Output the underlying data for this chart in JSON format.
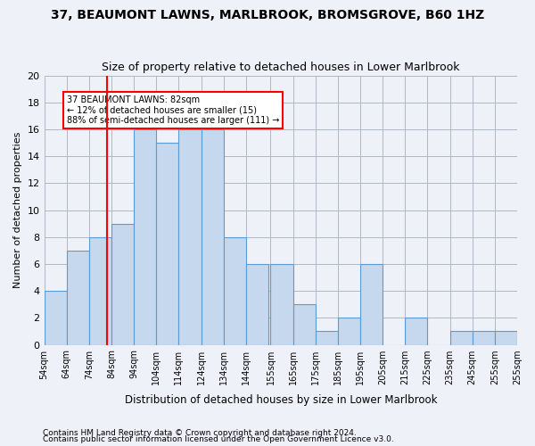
{
  "title": "37, BEAUMONT LAWNS, MARLBROOK, BROMSGROVE, B60 1HZ",
  "subtitle": "Size of property relative to detached houses in Lower Marlbrook",
  "xlabel": "Distribution of detached houses by size in Lower Marlbrook",
  "ylabel": "Number of detached properties",
  "bin_labels": [
    "54sqm",
    "64sqm",
    "74sqm",
    "84sqm",
    "94sqm",
    "104sqm",
    "114sqm",
    "124sqm",
    "134sqm",
    "144sqm",
    "155sqm",
    "165sqm",
    "175sqm",
    "185sqm",
    "195sqm",
    "205sqm",
    "215sqm",
    "225sqm",
    "235sqm",
    "245sqm",
    "255sqm"
  ],
  "bin_edges": [
    54,
    64,
    74,
    84,
    94,
    104,
    114,
    124,
    134,
    144,
    155,
    165,
    175,
    185,
    195,
    205,
    215,
    225,
    235,
    245,
    255
  ],
  "counts": [
    4,
    7,
    8,
    9,
    16,
    15,
    16,
    16,
    8,
    6,
    6,
    3,
    1,
    2,
    6,
    0,
    2,
    0,
    1,
    1,
    1
  ],
  "bar_color": "#c5d8ed",
  "bar_edge_color": "#5b9bd5",
  "reference_line_x": 82,
  "reference_line_color": "red",
  "annotation_text": "37 BEAUMONT LAWNS: 82sqm\n← 12% of detached houses are smaller (15)\n88% of semi-detached houses are larger (111) →",
  "annotation_box_color": "white",
  "annotation_box_edge_color": "red",
  "ylim": [
    0,
    20
  ],
  "yticks": [
    0,
    2,
    4,
    6,
    8,
    10,
    12,
    14,
    16,
    18,
    20
  ],
  "grid_color": "#b0b8c8",
  "background_color": "#eef2f8",
  "footer1": "Contains HM Land Registry data © Crown copyright and database right 2024.",
  "footer2": "Contains public sector information licensed under the Open Government Licence v3.0."
}
